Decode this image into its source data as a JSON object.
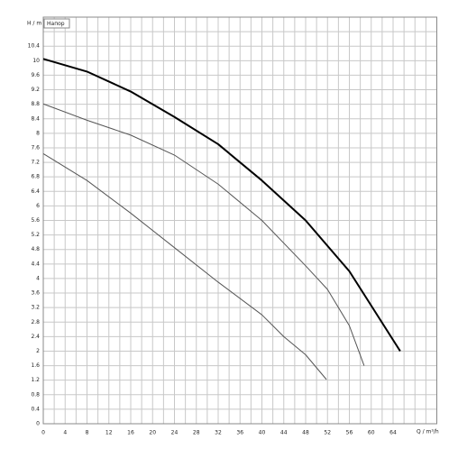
{
  "chart_data": {
    "type": "line",
    "ylabel": "H / m",
    "xlabel": "Q / m³/h",
    "legend_label": "Напор",
    "xlim": [
      0,
      72
    ],
    "ylim": [
      0,
      11.2
    ],
    "xticks": [
      0,
      4,
      8,
      12,
      16,
      20,
      24,
      28,
      32,
      36,
      40,
      44,
      48,
      52,
      56,
      60,
      64
    ],
    "xminorticks": [
      2,
      6,
      10,
      14,
      18,
      22,
      26,
      30,
      34,
      38,
      42,
      46,
      50,
      54,
      58,
      62,
      66,
      68,
      70
    ],
    "yticks": [
      0,
      0.4,
      0.8,
      1.2,
      1.6,
      2,
      2.4,
      2.8,
      3.2,
      3.6,
      4,
      4.4,
      4.8,
      5.2,
      5.6,
      6,
      6.4,
      6.8,
      7.2,
      7.6,
      8,
      8.4,
      8.8,
      9.2,
      9.6,
      10,
      10.4
    ],
    "yminorticks": [
      10.8
    ],
    "grid": true,
    "series": [
      {
        "color": "#000000",
        "width": 2,
        "x": [
          0,
          8,
          16,
          24,
          32,
          40,
          48,
          56,
          65.3
        ],
        "values": [
          10.05,
          9.7,
          9.15,
          8.45,
          7.7,
          6.7,
          5.6,
          4.2,
          2.0
        ]
      },
      {
        "color": "#555555",
        "width": 1,
        "x": [
          0,
          8,
          16,
          24,
          32,
          40,
          48,
          52,
          56,
          58.7
        ],
        "values": [
          8.81,
          8.36,
          7.95,
          7.4,
          6.6,
          5.6,
          4.35,
          3.7,
          2.7,
          1.6
        ]
      },
      {
        "color": "#555555",
        "width": 1,
        "x": [
          0,
          8,
          16,
          24,
          32,
          40,
          44,
          48,
          51.8
        ],
        "values": [
          7.44,
          6.7,
          5.8,
          4.85,
          3.9,
          3.0,
          2.4,
          1.9,
          1.22
        ]
      }
    ]
  }
}
